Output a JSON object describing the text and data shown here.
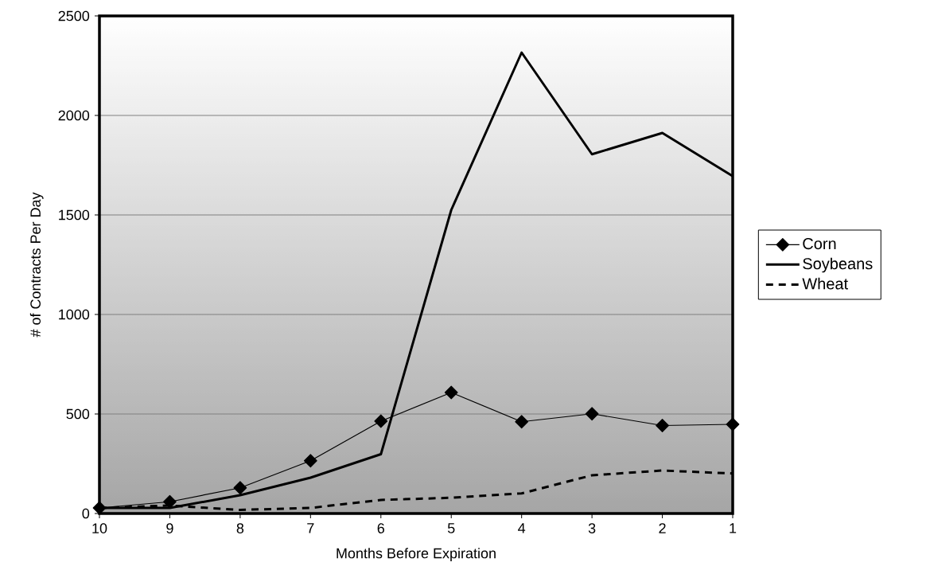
{
  "chart_data": {
    "type": "line",
    "xlabel": "Months Before Expiration",
    "ylabel": "# of Contracts Per Day",
    "categories": [
      "10",
      "9",
      "8",
      "7",
      "6",
      "5",
      "4",
      "3",
      "2",
      "1"
    ],
    "series": [
      {
        "name": "Corn",
        "color": "#000000",
        "marker": "diamond",
        "line_style": "solid",
        "values": [
          28,
          59,
          129,
          265,
          464,
          608,
          461,
          501,
          442,
          448
        ]
      },
      {
        "name": "Soybeans",
        "color": "#000000",
        "marker": "none",
        "line_style": "solid",
        "values": [
          28,
          28,
          92,
          180,
          298,
          1525,
          2316,
          1805,
          1912,
          1695
        ]
      },
      {
        "name": "Wheat",
        "color": "#000000",
        "marker": "none",
        "line_style": "dashed",
        "values": [
          28,
          40,
          18,
          28,
          68,
          79,
          101,
          192,
          216,
          201
        ]
      }
    ],
    "ylim": [
      0,
      2500
    ],
    "yticks": [
      0,
      500,
      1000,
      1500,
      2000,
      2500
    ],
    "grid": "y",
    "legend": "right"
  }
}
